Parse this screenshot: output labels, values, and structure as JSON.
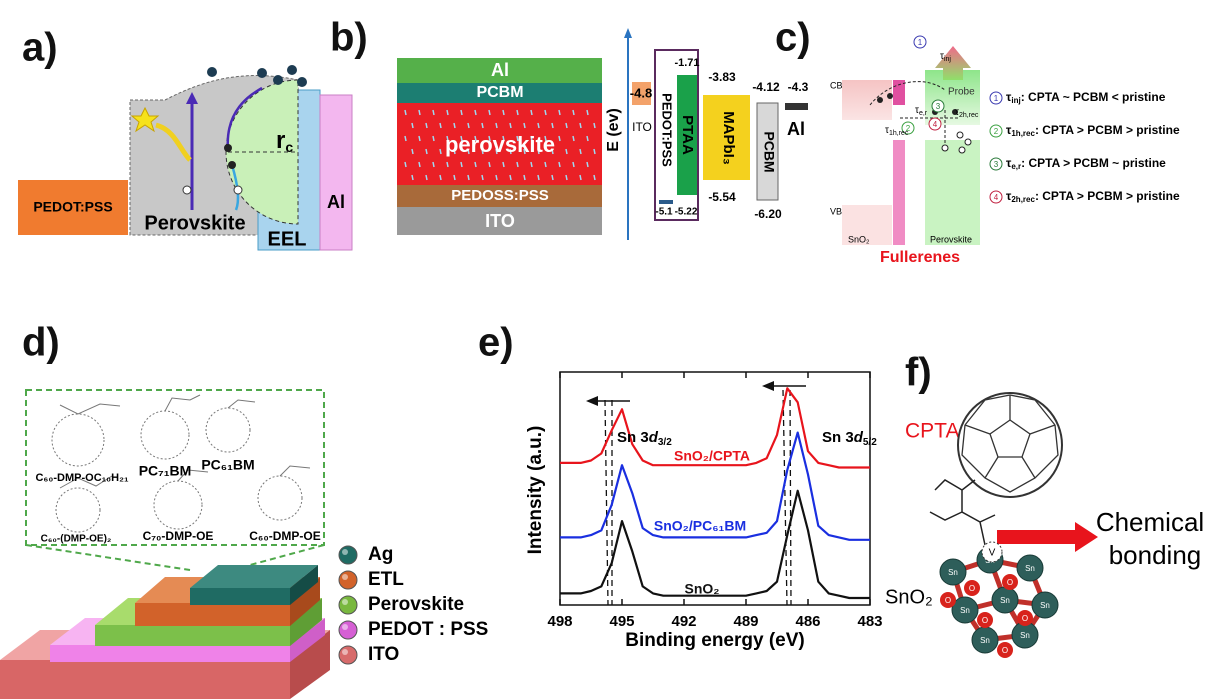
{
  "panel_labels": [
    "a)",
    "b)",
    "c)",
    "d)",
    "e)",
    "f)"
  ],
  "panel_a": {
    "layers": [
      "PEDOT:PSS",
      "Perovskite",
      "EEL",
      "Al"
    ],
    "radius": [
      "r",
      "c"
    ]
  },
  "panel_b": {
    "stack": [
      "Al",
      "PCBM",
      "perovskite",
      "PEDOSS:PSS",
      "ITO"
    ],
    "axis_label": "E (ev)",
    "materials": [
      "ITO",
      "PEDOT:PSS",
      "PTAA",
      "MAPbI₃",
      "PCBM",
      "Al"
    ],
    "levels": [
      "-4.8",
      "-1.71",
      "-5.1",
      "-5.22",
      "-3.83",
      "-5.54",
      "-4.12",
      "-6.20",
      "-4.3"
    ]
  },
  "panel_c": {
    "labels": [
      "CB",
      "VB",
      "SnO₂",
      "Perovskite",
      "Fullerenes",
      "Probe"
    ],
    "legend": [
      {
        "num": "1",
        "symbol": "τ",
        "sub": "inj",
        "text": ": CPTA ~ PCBM < pristine"
      },
      {
        "num": "2",
        "symbol": "τ",
        "sub": "1h,rec",
        "text": ": CPTA > PCBM > pristine"
      },
      {
        "num": "3",
        "symbol": "τ",
        "sub": "e,r",
        "text": ": CPTA > PCBM ~ pristine"
      },
      {
        "num": "4",
        "symbol": "τ",
        "sub": "2h,rec",
        "text": ": CPTA > PCBM > pristine"
      }
    ]
  },
  "panel_d": {
    "molecules": [
      "C₆₀-DMP-OC₁₀H₂₁",
      "PC₇₁BM",
      "PC₆₁BM",
      "C₆₀-(DMP-OE)₂",
      "C₇₀-DMP-OE",
      "C₆₀-DMP-OE"
    ],
    "legend": [
      "Ag",
      "ETL",
      "Perovskite",
      "PEDOT : PSS",
      "ITO"
    ]
  },
  "chart_data": {
    "type": "line",
    "xlabel": "Binding energy (eV)",
    "ylabel": "Intensity (a.u.)",
    "x": [
      498,
      497.5,
      497,
      496.5,
      496,
      495.5,
      495,
      494.5,
      494,
      493.5,
      493,
      492.5,
      492,
      491.5,
      491,
      490.5,
      490,
      489.5,
      489,
      488.5,
      488,
      487.5,
      487,
      486.5,
      486,
      485.5,
      485,
      484.5,
      484,
      483.5,
      483
    ],
    "xlim": [
      498,
      483
    ],
    "xticks": [
      498,
      495,
      492,
      489,
      486,
      483
    ],
    "ylim": [
      0,
      10
    ],
    "series": [
      {
        "name": "SnO₂/CPTA",
        "color": "#e8141c",
        "values": [
          6.1,
          6.1,
          6.1,
          6.2,
          6.5,
          7.5,
          8.4,
          6.9,
          6.2,
          6.0,
          6.0,
          6.0,
          6.0,
          6.0,
          6.0,
          6.0,
          6.0,
          6.0,
          6.0,
          6.1,
          6.3,
          7.3,
          9.3,
          8.7,
          6.6,
          6.1,
          6.0,
          5.9,
          5.9,
          5.9,
          5.9
        ]
      },
      {
        "name": "SnO₂/PC₆₁BM",
        "color": "#1a2fe0",
        "values": [
          2.9,
          2.9,
          2.9,
          3.0,
          3.2,
          4.3,
          6.0,
          4.8,
          3.3,
          3.0,
          2.9,
          2.9,
          2.9,
          2.9,
          2.9,
          2.9,
          2.9,
          2.9,
          2.9,
          3.0,
          3.1,
          3.6,
          5.8,
          7.4,
          5.6,
          3.4,
          3.0,
          2.9,
          2.8,
          2.8,
          2.8
        ]
      },
      {
        "name": "SnO₂",
        "color": "#111111",
        "values": [
          0.5,
          0.5,
          0.5,
          0.6,
          0.8,
          1.8,
          3.6,
          2.3,
          0.8,
          0.5,
          0.4,
          0.4,
          0.4,
          0.4,
          0.4,
          0.4,
          0.4,
          0.4,
          0.4,
          0.5,
          0.6,
          1.0,
          3.0,
          4.9,
          3.2,
          1.0,
          0.5,
          0.4,
          0.3,
          0.3,
          0.3
        ]
      }
    ],
    "annotations": [
      {
        "text": [
          "Sn 3",
          "d",
          "3/2"
        ]
      },
      {
        "text": [
          "Sn 3",
          "d",
          "5/2"
        ]
      }
    ]
  },
  "panel_f": {
    "molecule": "CPTA",
    "substrate": "SnO₂",
    "vacancy": "V",
    "atoms": [
      "Sn",
      "O"
    ],
    "result": [
      "Chemical",
      "bonding"
    ]
  }
}
